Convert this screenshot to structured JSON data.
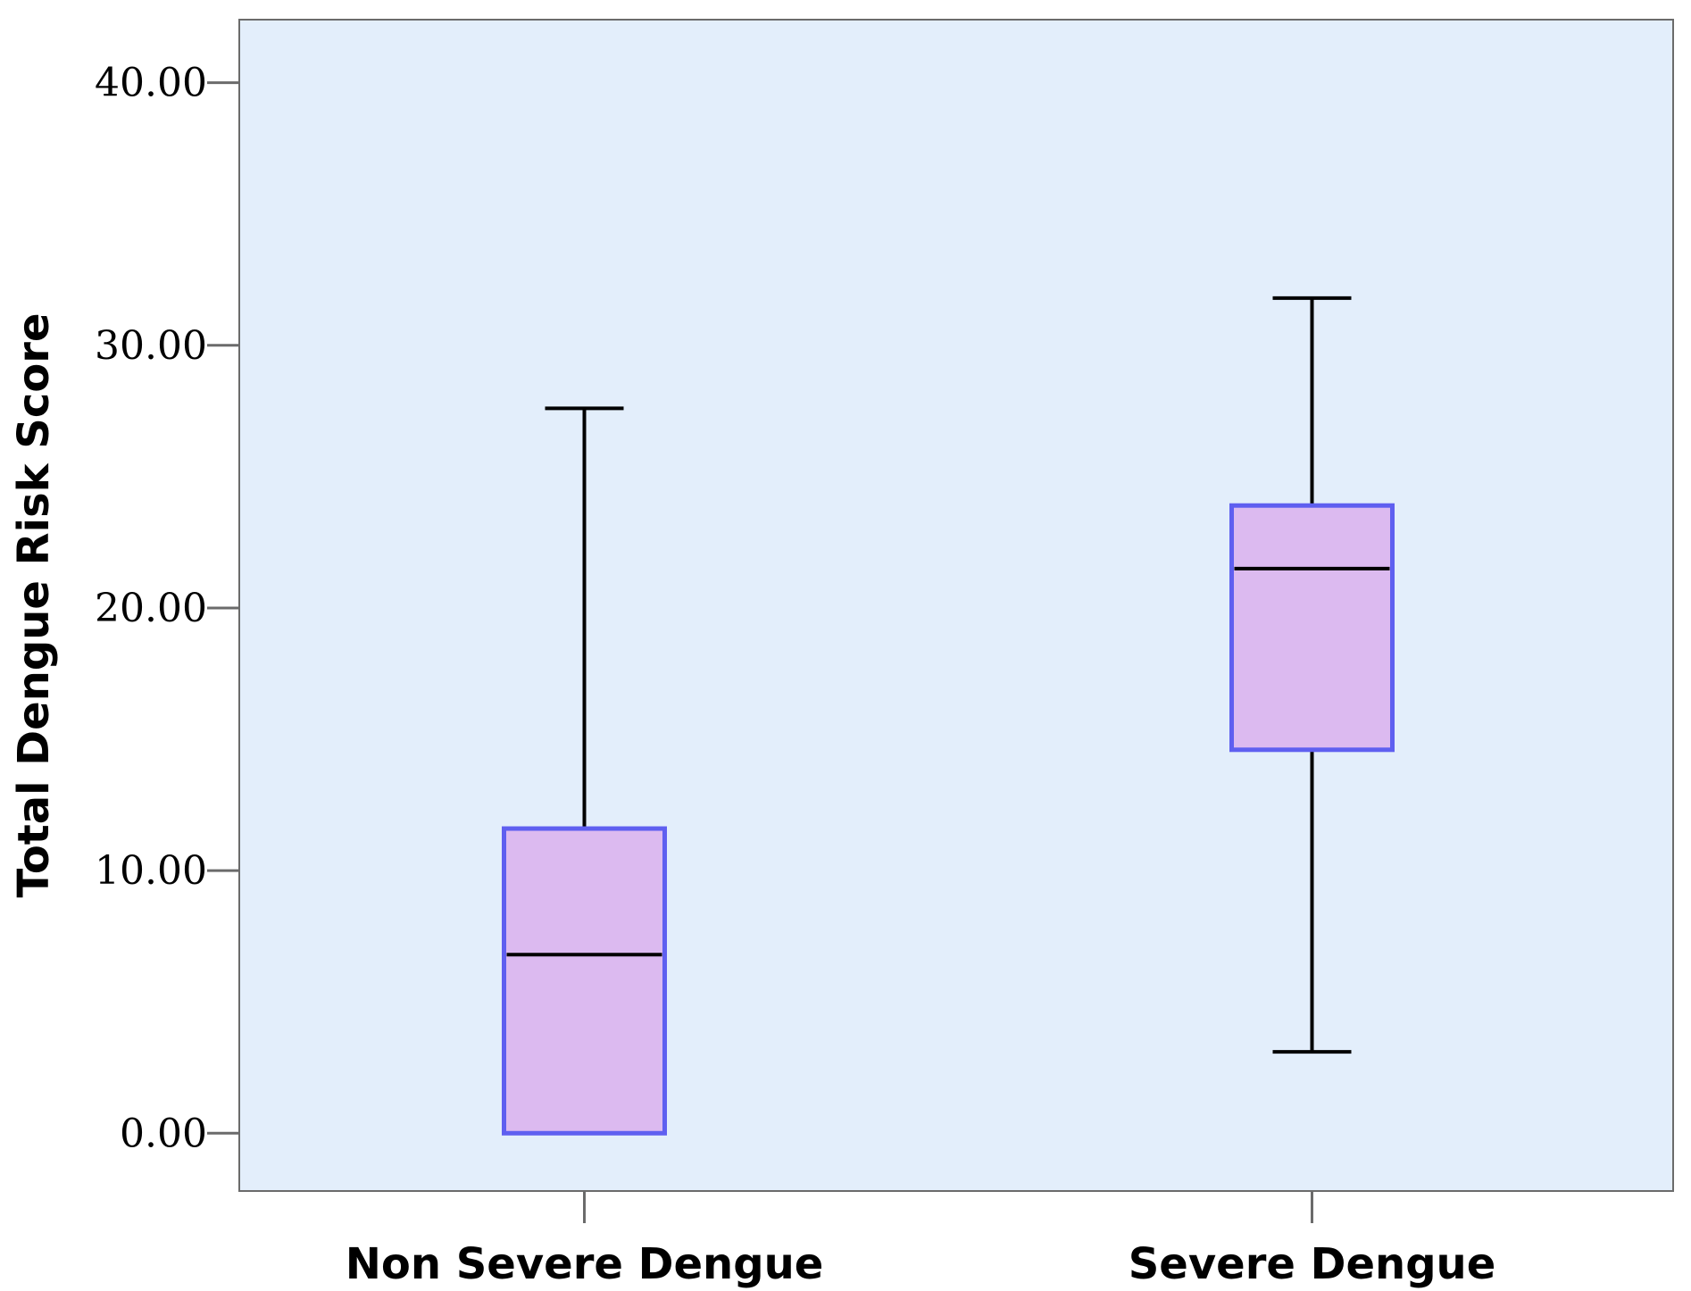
{
  "chart_data": {
    "type": "box",
    "title": "",
    "xlabel": "",
    "ylabel": "Total Dengue Risk Score",
    "ylim": [
      -2.2,
      42.4
    ],
    "yticks": [
      0,
      10,
      20,
      30,
      40
    ],
    "ytick_labels": [
      "0.00",
      "10.00",
      "20.00",
      "30.00",
      "40.00"
    ],
    "categories": [
      "Non Severe Dengue",
      "Severe Dengue"
    ],
    "boxes": [
      {
        "category": "Non Severe Dengue",
        "min": 0,
        "q1": 0,
        "median": 6.8,
        "q3": 11.6,
        "max": 27.6
      },
      {
        "category": "Severe Dengue",
        "min": 3.1,
        "q1": 14.6,
        "median": 21.5,
        "q3": 23.9,
        "max": 31.8
      }
    ],
    "colors": {
      "plot_background": "#e3eefb",
      "box_fill": "#dcbaf0",
      "box_edge": "#5f5ff0",
      "line": "#000000",
      "axis": "#6b6b6b"
    },
    "grid": false
  }
}
